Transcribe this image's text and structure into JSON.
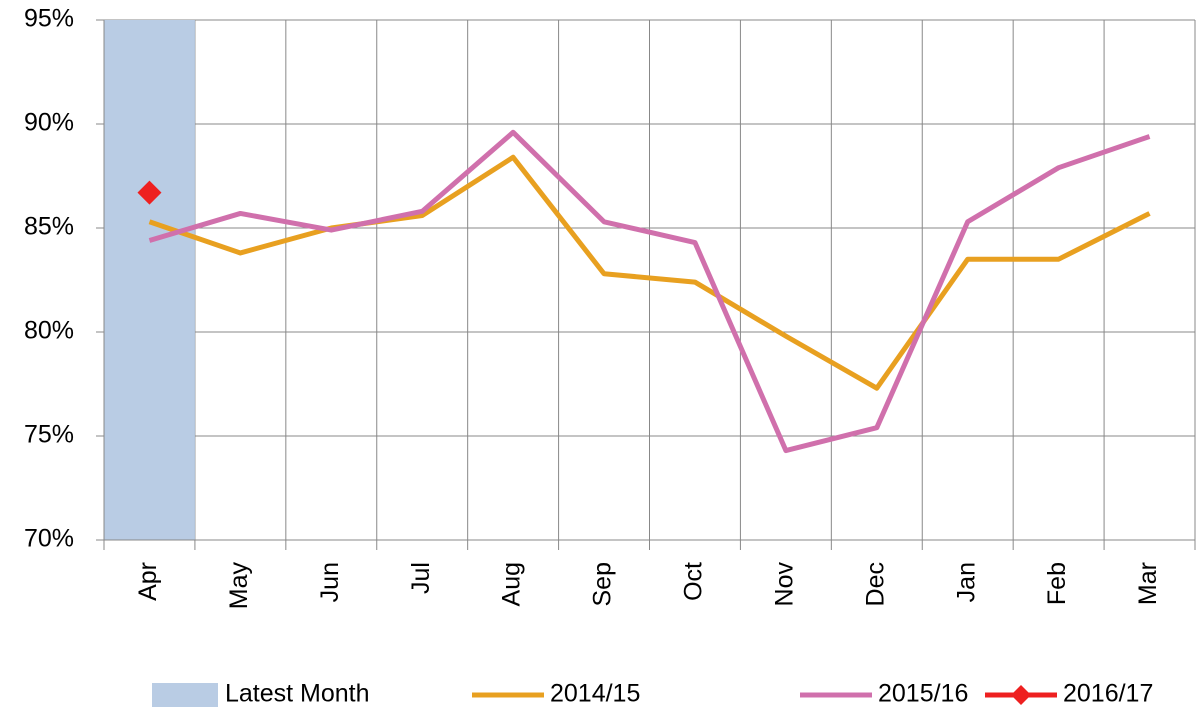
{
  "chart_data": {
    "type": "line",
    "categories": [
      "Apr",
      "May",
      "Jun",
      "Jul",
      "Aug",
      "Sep",
      "Oct",
      "Nov",
      "Dec",
      "Jan",
      "Feb",
      "Mar"
    ],
    "series": [
      {
        "name": "Latest Month",
        "type": "bar",
        "color": "#b9cce4",
        "values": [
          95,
          null,
          null,
          null,
          null,
          null,
          null,
          null,
          null,
          null,
          null,
          null
        ]
      },
      {
        "name": "2014/15",
        "type": "line",
        "color": "#e8a020",
        "values": [
          85.3,
          83.8,
          85.0,
          85.6,
          88.4,
          82.8,
          82.4,
          79.8,
          77.3,
          83.5,
          83.5,
          85.7
        ]
      },
      {
        "name": "2015/16",
        "type": "line",
        "color": "#d070ac",
        "values": [
          84.4,
          85.7,
          84.9,
          85.8,
          89.6,
          85.3,
          84.3,
          74.3,
          75.4,
          85.3,
          87.9,
          89.4
        ]
      },
      {
        "name": "2016/17",
        "type": "line",
        "marker": "diamond",
        "color": "#ee2020",
        "values": [
          86.7,
          null,
          null,
          null,
          null,
          null,
          null,
          null,
          null,
          null,
          null,
          null
        ]
      }
    ],
    "ylim": [
      70,
      95
    ],
    "yticks": [
      {
        "value": 70,
        "label": "70%"
      },
      {
        "value": 75,
        "label": "75%"
      },
      {
        "value": 80,
        "label": "80%"
      },
      {
        "value": 85,
        "label": "85%"
      },
      {
        "value": 90,
        "label": "90%"
      },
      {
        "value": 95,
        "label": "95%"
      }
    ],
    "grid": true,
    "legend": "bottom"
  }
}
